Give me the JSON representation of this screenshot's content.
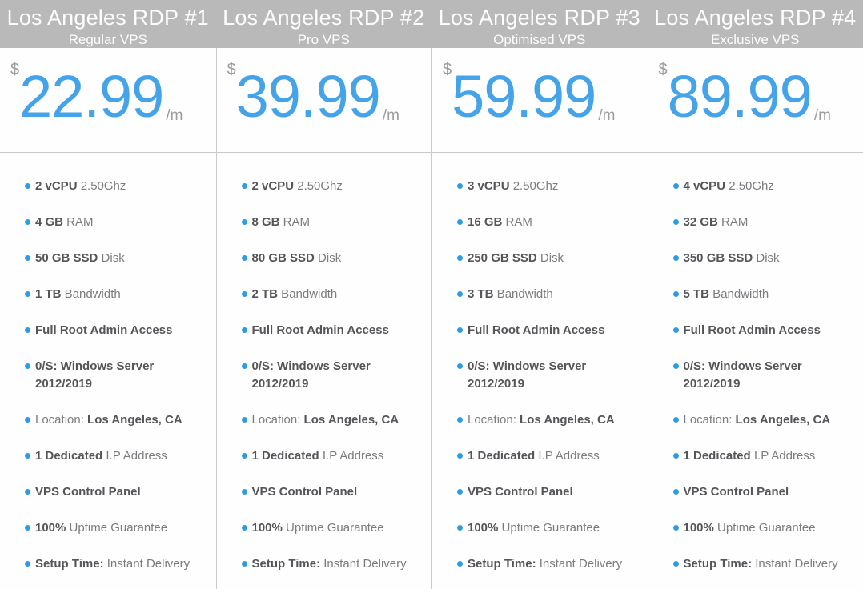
{
  "colors": {
    "header_bg": "#b9b9b9",
    "header_text": "#fdfdfd",
    "price_accent": "#45a3e9",
    "bullet": "#2d9ce3",
    "bold_text": "#54565a",
    "normal_text": "#7a7c80",
    "divider": "#cbcbcb"
  },
  "plans": [
    {
      "title": "Los Angeles RDP #1",
      "subtitle": "Regular VPS",
      "currency": "$",
      "amount": "22.99",
      "period": "/m",
      "features": [
        {
          "bold": "2 vCPU",
          "post": " 2.50Ghz"
        },
        {
          "bold": "4 GB",
          "post": " RAM"
        },
        {
          "bold": "50 GB SSD",
          "post": " Disk"
        },
        {
          "bold": "1 TB",
          "post": " Bandwidth"
        },
        {
          "bold": "Full Root Admin Access"
        },
        {
          "bold": "0/S: Windows Server 2012/2019"
        },
        {
          "pre": "Location: ",
          "bold": "Los Angeles, CA"
        },
        {
          "bold": "1 Dedicated",
          "post": " I.P Address"
        },
        {
          "bold": "VPS Control Panel"
        },
        {
          "bold": "100%",
          "post": " Uptime Guarantee"
        },
        {
          "bold": "Setup Time:",
          "post": " Instant Delivery"
        }
      ]
    },
    {
      "title": "Los Angeles RDP #2",
      "subtitle": "Pro VPS",
      "currency": "$",
      "amount": "39.99",
      "period": "/m",
      "features": [
        {
          "bold": "2 vCPU",
          "post": " 2.50Ghz"
        },
        {
          "bold": "8 GB",
          "post": " RAM"
        },
        {
          "bold": "80 GB SSD",
          "post": " Disk"
        },
        {
          "bold": "2 TB",
          "post": " Bandwidth"
        },
        {
          "bold": "Full Root Admin Access"
        },
        {
          "bold": "0/S: Windows Server 2012/2019"
        },
        {
          "pre": "Location: ",
          "bold": "Los Angeles, CA"
        },
        {
          "bold": "1 Dedicated",
          "post": " I.P Address"
        },
        {
          "bold": "VPS Control Panel"
        },
        {
          "bold": "100%",
          "post": " Uptime Guarantee"
        },
        {
          "bold": "Setup Time:",
          "post": " Instant Delivery"
        }
      ]
    },
    {
      "title": "Los Angeles RDP #3",
      "subtitle": "Optimised VPS",
      "currency": "$",
      "amount": "59.99",
      "period": "/m",
      "features": [
        {
          "bold": "3 vCPU",
          "post": " 2.50Ghz"
        },
        {
          "bold": "16 GB",
          "post": " RAM"
        },
        {
          "bold": "250 GB SSD",
          "post": " Disk"
        },
        {
          "bold": "3 TB",
          "post": " Bandwidth"
        },
        {
          "bold": "Full Root Admin Access"
        },
        {
          "bold": "0/S: Windows Server 2012/2019"
        },
        {
          "pre": "Location: ",
          "bold": "Los Angeles, CA"
        },
        {
          "bold": "1 Dedicated",
          "post": " I.P Address"
        },
        {
          "bold": "VPS Control Panel"
        },
        {
          "bold": "100%",
          "post": " Uptime Guarantee"
        },
        {
          "bold": "Setup Time:",
          "post": " Instant Delivery"
        }
      ]
    },
    {
      "title": "Los Angeles RDP #4",
      "subtitle": "Exclusive VPS",
      "currency": "$",
      "amount": "89.99",
      "period": "/m",
      "features": [
        {
          "bold": "4 vCPU",
          "post": " 2.50Ghz"
        },
        {
          "bold": "32 GB",
          "post": " RAM"
        },
        {
          "bold": "350 GB SSD",
          "post": " Disk"
        },
        {
          "bold": "5 TB",
          "post": " Bandwidth"
        },
        {
          "bold": "Full Root Admin Access"
        },
        {
          "bold": "0/S: Windows Server 2012/2019"
        },
        {
          "pre": "Location: ",
          "bold": "Los Angeles, CA"
        },
        {
          "bold": "1 Dedicated",
          "post": " I.P Address"
        },
        {
          "bold": "VPS Control Panel"
        },
        {
          "bold": "100%",
          "post": " Uptime Guarantee"
        },
        {
          "bold": "Setup Time:",
          "post": " Instant Delivery"
        }
      ]
    }
  ]
}
